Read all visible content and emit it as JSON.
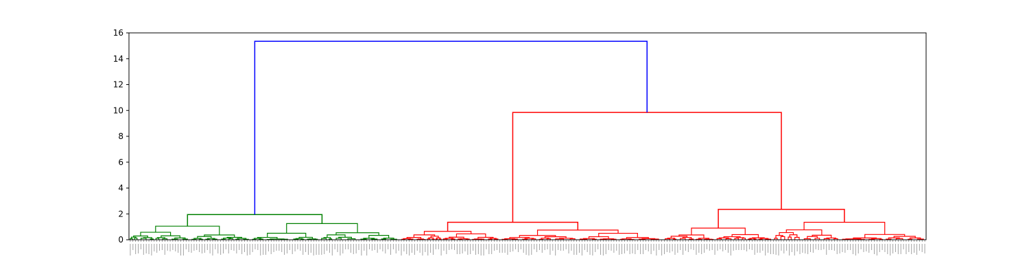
{
  "chart_data": {
    "type": "dendrogram",
    "title": "",
    "xlabel": "",
    "ylabel": "",
    "ylim": [
      0,
      16
    ],
    "yticks": [
      0,
      2,
      4,
      6,
      8,
      10,
      12,
      14,
      16
    ],
    "grid": false,
    "leaf_count": 300,
    "leaf_labels_visible": true,
    "clusters": [
      {
        "color": "#008000",
        "leaf_fraction": 0.34
      },
      {
        "color": "#ff0000",
        "leaf_fraction": 0.33
      },
      {
        "color": "#ff0000",
        "leaf_fraction": 0.33
      }
    ],
    "merges": [
      {
        "height": 15.35,
        "color": "#0000ff",
        "joins": [
          "green-cluster",
          "red-super-cluster"
        ]
      },
      {
        "height": 9.85,
        "color": "#ff0000",
        "joins": [
          "red-cluster-a",
          "red-cluster-b"
        ]
      },
      {
        "height": 2.35,
        "color": "#ff0000",
        "cluster": "red-cluster-b"
      },
      {
        "height": 1.95,
        "color": "#008000",
        "cluster": "green-cluster"
      },
      {
        "height": 1.35,
        "color": "#ff0000",
        "cluster": "red-cluster-a"
      }
    ],
    "colors": {
      "above_threshold": "#0000ff",
      "cluster_1": "#008000",
      "cluster_2": "#ff0000"
    }
  }
}
